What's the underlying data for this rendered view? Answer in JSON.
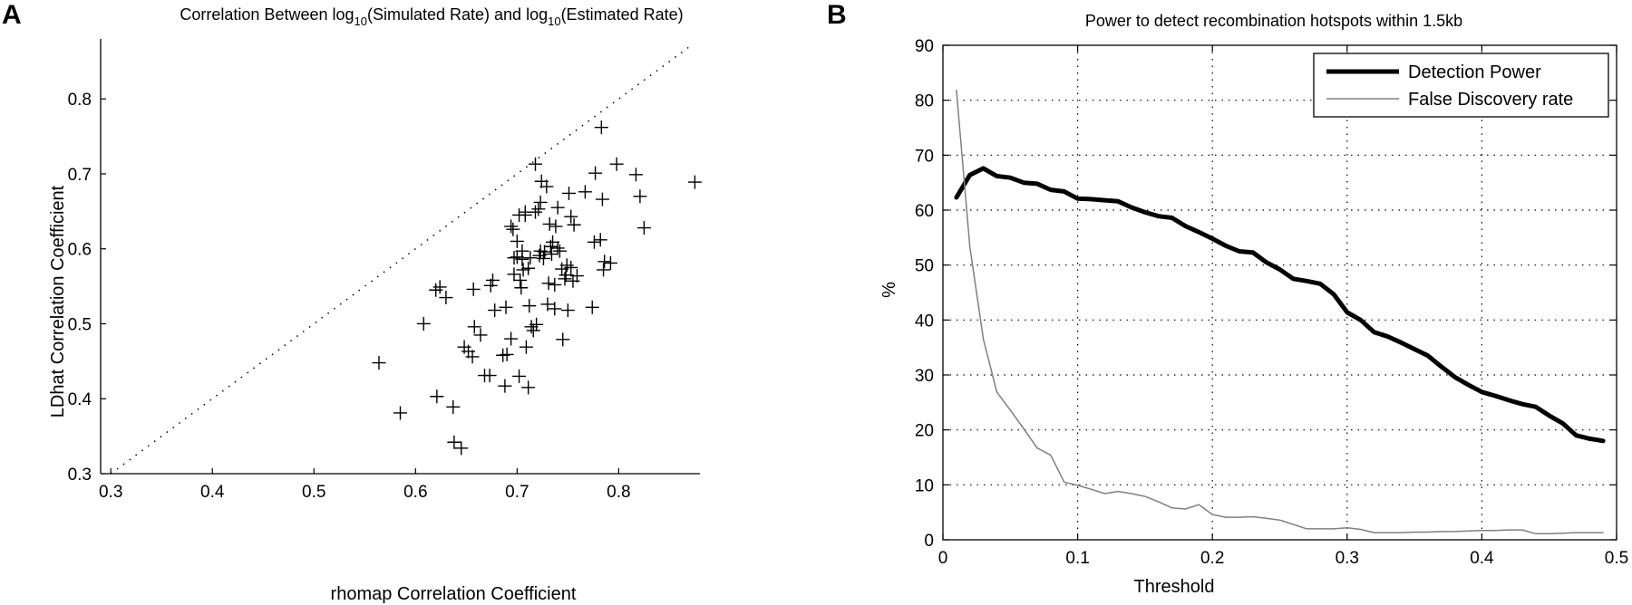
{
  "panels": {
    "a": "A",
    "b": "B"
  },
  "chart_data": [
    {
      "type": "scatter",
      "title": "Correlation Between log10(Simulated Rate) and log10(Estimated Rate)",
      "title_parts": {
        "pre": "Correlation Between log",
        "sub1": "10",
        "mid": "(Simulated Rate) and log",
        "sub2": "10",
        "post": "(Estimated Rate)"
      },
      "xlabel": "rhomap Correlation Coefficient",
      "ylabel": "LDhat Correlation Coefficient",
      "xlim": [
        0.29,
        0.88
      ],
      "ylim": [
        0.3,
        0.88
      ],
      "xticks": [
        "0.3",
        "0.4",
        "0.5",
        "0.6",
        "0.7",
        "0.8"
      ],
      "yticks": [
        "0.3",
        "0.4",
        "0.5",
        "0.6",
        "0.7",
        "0.8"
      ],
      "xtick_values": [
        0.3,
        0.4,
        0.5,
        0.6,
        0.7,
        0.8
      ],
      "ytick_values": [
        0.3,
        0.4,
        0.5,
        0.6,
        0.7,
        0.8
      ],
      "grid": false,
      "marker": "plus",
      "reference_line": {
        "style": "dotted",
        "from": [
          0.3,
          0.3
        ],
        "to": [
          0.87,
          0.87
        ]
      },
      "points": [
        [
          0.564,
          0.448
        ],
        [
          0.585,
          0.381
        ],
        [
          0.608,
          0.5
        ],
        [
          0.62,
          0.545
        ],
        [
          0.624,
          0.549
        ],
        [
          0.63,
          0.535
        ],
        [
          0.621,
          0.403
        ],
        [
          0.637,
          0.389
        ],
        [
          0.638,
          0.342
        ],
        [
          0.645,
          0.334
        ],
        [
          0.648,
          0.469
        ],
        [
          0.652,
          0.463
        ],
        [
          0.656,
          0.456
        ],
        [
          0.657,
          0.546
        ],
        [
          0.658,
          0.496
        ],
        [
          0.664,
          0.485
        ],
        [
          0.668,
          0.431
        ],
        [
          0.673,
          0.431
        ],
        [
          0.674,
          0.551
        ],
        [
          0.676,
          0.558
        ],
        [
          0.678,
          0.518
        ],
        [
          0.686,
          0.458
        ],
        [
          0.69,
          0.459
        ],
        [
          0.688,
          0.417
        ],
        [
          0.689,
          0.522
        ],
        [
          0.694,
          0.63
        ],
        [
          0.694,
          0.48
        ],
        [
          0.696,
          0.626
        ],
        [
          0.697,
          0.588
        ],
        [
          0.697,
          0.566
        ],
        [
          0.7,
          0.589
        ],
        [
          0.7,
          0.61
        ],
        [
          0.702,
          0.645
        ],
        [
          0.702,
          0.43
        ],
        [
          0.703,
          0.558
        ],
        [
          0.704,
          0.548
        ],
        [
          0.705,
          0.586
        ],
        [
          0.705,
          0.597
        ],
        [
          0.706,
          0.572
        ],
        [
          0.708,
          0.649
        ],
        [
          0.708,
          0.645
        ],
        [
          0.709,
          0.469
        ],
        [
          0.711,
          0.415
        ],
        [
          0.711,
          0.574
        ],
        [
          0.713,
          0.588
        ],
        [
          0.712,
          0.524
        ],
        [
          0.714,
          0.496
        ],
        [
          0.716,
          0.491
        ],
        [
          0.718,
          0.713
        ],
        [
          0.718,
          0.649
        ],
        [
          0.719,
          0.499
        ],
        [
          0.721,
          0.653
        ],
        [
          0.722,
          0.591
        ],
        [
          0.723,
          0.597
        ],
        [
          0.723,
          0.662
        ],
        [
          0.724,
          0.69
        ],
        [
          0.726,
          0.587
        ],
        [
          0.727,
          0.596
        ],
        [
          0.729,
          0.683
        ],
        [
          0.73,
          0.526
        ],
        [
          0.731,
          0.554
        ],
        [
          0.732,
          0.633
        ],
        [
          0.733,
          0.603
        ],
        [
          0.734,
          0.593
        ],
        [
          0.735,
          0.609
        ],
        [
          0.737,
          0.552
        ],
        [
          0.737,
          0.52
        ],
        [
          0.738,
          0.63
        ],
        [
          0.74,
          0.655
        ],
        [
          0.74,
          0.601
        ],
        [
          0.742,
          0.597
        ],
        [
          0.744,
          0.573
        ],
        [
          0.745,
          0.479
        ],
        [
          0.747,
          0.56
        ],
        [
          0.748,
          0.565
        ],
        [
          0.749,
          0.578
        ],
        [
          0.75,
          0.518
        ],
        [
          0.751,
          0.674
        ],
        [
          0.753,
          0.643
        ],
        [
          0.753,
          0.575
        ],
        [
          0.755,
          0.557
        ],
        [
          0.756,
          0.632
        ],
        [
          0.759,
          0.564
        ],
        [
          0.767,
          0.676
        ],
        [
          0.774,
          0.522
        ],
        [
          0.776,
          0.609
        ],
        [
          0.777,
          0.701
        ],
        [
          0.782,
          0.612
        ],
        [
          0.783,
          0.762
        ],
        [
          0.784,
          0.666
        ],
        [
          0.785,
          0.572
        ],
        [
          0.786,
          0.583
        ],
        [
          0.792,
          0.581
        ],
        [
          0.798,
          0.713
        ],
        [
          0.817,
          0.699
        ],
        [
          0.821,
          0.67
        ],
        [
          0.825,
          0.628
        ],
        [
          0.875,
          0.689
        ]
      ]
    },
    {
      "type": "line",
      "title": "Power to detect recombination hotspots within 1.5kb",
      "xlabel": "Threshold",
      "ylabel": "%",
      "xlim": [
        0,
        0.5
      ],
      "ylim": [
        0,
        90
      ],
      "xticks": [
        "0",
        "0.1",
        "0.2",
        "0.3",
        "0.4",
        "0.5"
      ],
      "yticks": [
        "0",
        "10",
        "20",
        "30",
        "40",
        "50",
        "60",
        "70",
        "80",
        "90"
      ],
      "xtick_values": [
        0,
        0.1,
        0.2,
        0.3,
        0.4,
        0.5
      ],
      "ytick_values": [
        0,
        10,
        20,
        30,
        40,
        50,
        60,
        70,
        80,
        90
      ],
      "grid": true,
      "legend_position": "top-right",
      "series": [
        {
          "name": "Detection Power",
          "color": "#000000",
          "x": [
            0.01,
            0.02,
            0.03,
            0.04,
            0.05,
            0.06,
            0.07,
            0.08,
            0.09,
            0.1,
            0.11,
            0.12,
            0.13,
            0.14,
            0.15,
            0.16,
            0.17,
            0.18,
            0.19,
            0.2,
            0.21,
            0.22,
            0.23,
            0.24,
            0.25,
            0.26,
            0.27,
            0.28,
            0.29,
            0.3,
            0.31,
            0.32,
            0.33,
            0.34,
            0.35,
            0.36,
            0.37,
            0.38,
            0.39,
            0.4,
            0.41,
            0.42,
            0.43,
            0.44,
            0.45,
            0.46,
            0.47,
            0.48,
            0.49
          ],
          "values": [
            62.3,
            66.4,
            67.6,
            66.2,
            65.9,
            65.0,
            64.8,
            63.7,
            63.4,
            62.1,
            62.0,
            61.8,
            61.6,
            60.5,
            59.6,
            58.9,
            58.6,
            57.1,
            56.0,
            54.8,
            53.5,
            52.5,
            52.3,
            50.5,
            49.2,
            47.5,
            47.1,
            46.6,
            44.7,
            41.4,
            40.0,
            37.8,
            37.0,
            35.9,
            34.7,
            33.5,
            31.5,
            29.6,
            28.2,
            26.9,
            26.2,
            25.4,
            24.7,
            24.2,
            22.6,
            21.2,
            19.0,
            18.4,
            18.0
          ]
        },
        {
          "name": "False Discovery rate",
          "color": "#808080",
          "x": [
            0.01,
            0.02,
            0.03,
            0.04,
            0.05,
            0.06,
            0.07,
            0.08,
            0.09,
            0.1,
            0.11,
            0.12,
            0.13,
            0.14,
            0.15,
            0.16,
            0.17,
            0.18,
            0.19,
            0.2,
            0.21,
            0.22,
            0.23,
            0.24,
            0.25,
            0.26,
            0.27,
            0.28,
            0.29,
            0.3,
            0.31,
            0.32,
            0.33,
            0.34,
            0.35,
            0.36,
            0.37,
            0.38,
            0.39,
            0.4,
            0.41,
            0.42,
            0.43,
            0.44,
            0.45,
            0.46,
            0.47,
            0.48,
            0.49
          ],
          "values": [
            81.8,
            53.3,
            36.5,
            26.9,
            23.6,
            20.2,
            16.7,
            15.4,
            10.5,
            9.9,
            9.2,
            8.4,
            8.8,
            8.4,
            7.9,
            6.9,
            5.8,
            5.6,
            6.4,
            4.6,
            4.1,
            4.1,
            4.2,
            3.9,
            3.6,
            2.8,
            2.0,
            2.0,
            2.0,
            2.2,
            1.9,
            1.3,
            1.3,
            1.3,
            1.4,
            1.4,
            1.5,
            1.5,
            1.6,
            1.7,
            1.7,
            1.8,
            1.8,
            1.1,
            1.1,
            1.2,
            1.3,
            1.3,
            1.3
          ]
        }
      ]
    }
  ]
}
